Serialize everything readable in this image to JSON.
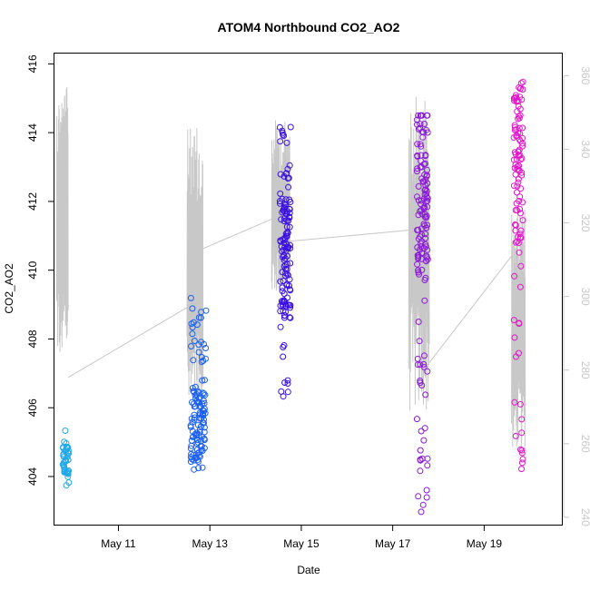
{
  "chart_data": {
    "type": "scatter",
    "title": "ATOM4 Northbound CO2_AO2",
    "xlabel": "Date",
    "ylabel": "CO2_AO2",
    "x_unit": "days (May)",
    "xlim": [
      9.6,
      20.7
    ],
    "ylim": [
      402.6,
      416.3
    ],
    "y2lim": [
      238,
      366
    ],
    "x_ticks": [
      {
        "value": 11,
        "label": "May 11"
      },
      {
        "value": 13,
        "label": "May 13"
      },
      {
        "value": 15,
        "label": "May 15"
      },
      {
        "value": 17,
        "label": "May 17"
      },
      {
        "value": 19,
        "label": "May 19"
      }
    ],
    "y_ticks": [
      404,
      406,
      408,
      410,
      412,
      414,
      416
    ],
    "y2_ticks": [
      240,
      260,
      280,
      300,
      320,
      340,
      360
    ],
    "grid": false,
    "scatter_clusters": [
      {
        "x_center": 9.85,
        "x_spread": 0.07,
        "y_min": 403.6,
        "y_max": 405.4,
        "y_center": 404.5,
        "n": 45,
        "color": "#22a8e8"
      },
      {
        "x_center": 12.75,
        "x_spread": 0.17,
        "y_min": 404.2,
        "y_max": 409.2,
        "y_center": 405.5,
        "n": 120,
        "color": "#1a5ff0"
      },
      {
        "x_center": 14.65,
        "x_spread": 0.12,
        "y_min": 406.3,
        "y_max": 414.4,
        "y_center": 410.5,
        "n": 130,
        "color": "#3a10e0"
      },
      {
        "x_center": 17.65,
        "x_spread": 0.12,
        "y_min": 402.9,
        "y_max": 414.5,
        "y_center": 412.3,
        "n": 140,
        "color": "#8a18d8"
      },
      {
        "x_center": 19.75,
        "x_spread": 0.1,
        "y_min": 404.2,
        "y_max": 415.7,
        "y_center": 413.0,
        "n": 110,
        "color": "#e018c8"
      }
    ],
    "line_series": {
      "axis": "right",
      "color": "#c8c8c8",
      "segments": [
        {
          "x_start": 9.65,
          "x_end": 9.9,
          "y_min": 282,
          "y_max": 357
        },
        {
          "x_start": 12.5,
          "x_end": 12.85,
          "y_min": 265,
          "y_max": 346
        },
        {
          "x_start": 14.35,
          "x_end": 14.75,
          "y_min": 300,
          "y_max": 348
        },
        {
          "x_start": 17.35,
          "x_end": 17.8,
          "y_min": 268,
          "y_max": 355
        },
        {
          "x_start": 19.6,
          "x_end": 19.9,
          "y_min": 258,
          "y_max": 325
        }
      ],
      "connectors": [
        {
          "x1": 9.9,
          "y1": 278,
          "x2": 12.5,
          "y2": 297
        },
        {
          "x1": 12.85,
          "y1": 313,
          "x2": 14.35,
          "y2": 321
        },
        {
          "x1": 14.75,
          "y1": 315,
          "x2": 17.35,
          "y2": 318
        },
        {
          "x1": 17.8,
          "y1": 282,
          "x2": 19.6,
          "y2": 311
        }
      ]
    }
  }
}
